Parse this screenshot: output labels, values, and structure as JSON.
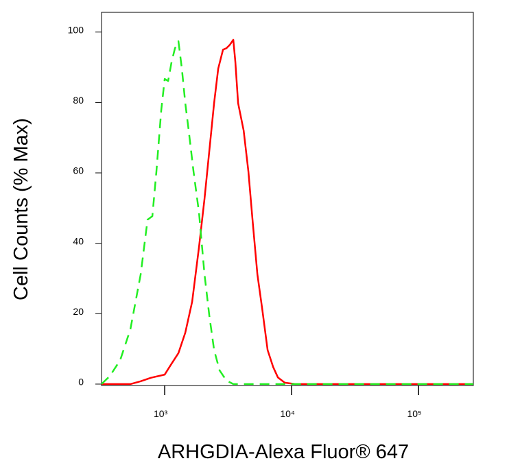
{
  "chart_data": {
    "type": "line",
    "xlabel": "ARHGDIA-Alexa Fluor® 647",
    "ylabel": "Cell Counts (% Max)",
    "xscale": "log",
    "xlim": [
      318,
      270000
    ],
    "xticks": [
      {
        "value": 1000,
        "label": "10³"
      },
      {
        "value": 10000,
        "label": "10⁴"
      },
      {
        "value": 100000,
        "label": "10⁵"
      }
    ],
    "ylim": [
      -0.4,
      105.6
    ],
    "yticks": [
      0,
      20,
      40,
      60,
      80,
      100
    ],
    "grid": false,
    "series": [
      {
        "color": "#ff0000",
        "linestyle": "solid",
        "x": [
          318,
          537,
          647,
          780,
          1000,
          1133,
          1283,
          1453,
          1645,
          1864,
          2059,
          2245,
          2449,
          2641,
          2880,
          3066,
          3263,
          3472,
          3603,
          3788,
          4187,
          4563,
          4920,
          5370,
          5859,
          6469,
          7146,
          7796,
          8827,
          10640,
          270000
        ],
        "values": [
          0,
          0,
          0.8,
          1.8,
          2.7,
          5.8,
          8.8,
          14.6,
          23.4,
          38.9,
          52.6,
          66.2,
          79.8,
          89.6,
          95.0,
          95.4,
          96.4,
          97.8,
          91.5,
          79.8,
          72.0,
          60.4,
          46.7,
          31.2,
          21.4,
          9.7,
          4.9,
          1.9,
          0.4,
          0,
          0
        ]
      },
      {
        "color": "#22ee22",
        "linestyle": "dashed",
        "x": [
          318,
          370,
          446,
          537,
          647,
          733,
          800,
          861,
          940,
          1000,
          1064,
          1133,
          1205,
          1283,
          1365,
          1453,
          1546,
          1687,
          1864,
          2059,
          2245,
          2449,
          2706,
          3066,
          3472,
          4453,
          7325,
          270000
        ],
        "values": [
          0,
          2.3,
          6.8,
          15.6,
          31.2,
          46.7,
          47.7,
          60.4,
          77.9,
          86.7,
          86.1,
          91.5,
          95.4,
          97.4,
          89.6,
          79.8,
          72.0,
          60.4,
          48.7,
          31.2,
          19.5,
          9.7,
          3.9,
          1.0,
          0,
          0,
          0,
          0
        ]
      }
    ]
  }
}
